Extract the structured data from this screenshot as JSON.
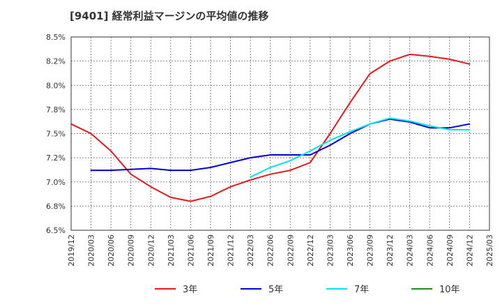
{
  "chart_data": {
    "type": "line",
    "title": "[9401]  経常利益マージンの平均値の推移",
    "xlabel": "",
    "ylabel": "",
    "ylim": [
      6.5,
      8.5
    ],
    "grid": true,
    "legend_position": "bottom",
    "x": [
      "2019/12",
      "2020/03",
      "2020/06",
      "2020/09",
      "2020/12",
      "2021/03",
      "2021/06",
      "2021/09",
      "2021/12",
      "2022/03",
      "2022/06",
      "2022/09",
      "2022/12",
      "2023/03",
      "2023/06",
      "2023/09",
      "2023/12",
      "2024/03",
      "2024/06",
      "2024/09",
      "2024/12",
      "2025/03"
    ],
    "y_ticks": [
      "6.5%",
      "6.8%",
      "7.0%",
      "7.2%",
      "7.5%",
      "7.8%",
      "8.0%",
      "8.2%",
      "8.5%"
    ],
    "series": [
      {
        "name": "3年",
        "color": "#e41a1c",
        "values": [
          7.6,
          7.5,
          7.32,
          7.08,
          6.95,
          6.84,
          6.8,
          6.85,
          6.95,
          7.02,
          7.08,
          7.12,
          7.2,
          7.5,
          7.82,
          8.12,
          8.25,
          8.32,
          8.3,
          8.27,
          8.22,
          null
        ]
      },
      {
        "name": "5年",
        "color": "#0000cc",
        "values": [
          null,
          7.12,
          7.12,
          7.13,
          7.14,
          7.12,
          7.12,
          7.15,
          7.2,
          7.25,
          7.28,
          7.28,
          7.28,
          7.38,
          7.5,
          7.6,
          7.65,
          7.62,
          7.56,
          7.56,
          7.6,
          null
        ]
      },
      {
        "name": "7年",
        "color": "#00e5ee",
        "values": [
          null,
          null,
          null,
          null,
          null,
          null,
          null,
          null,
          null,
          7.05,
          7.15,
          7.22,
          7.32,
          7.43,
          7.52,
          7.6,
          7.66,
          7.63,
          7.58,
          7.54,
          7.54,
          null
        ]
      },
      {
        "name": "10年",
        "color": "#228b22",
        "values": [
          null,
          null,
          null,
          null,
          null,
          null,
          null,
          null,
          null,
          null,
          null,
          null,
          null,
          null,
          null,
          null,
          null,
          null,
          null,
          null,
          null,
          null
        ]
      }
    ]
  }
}
